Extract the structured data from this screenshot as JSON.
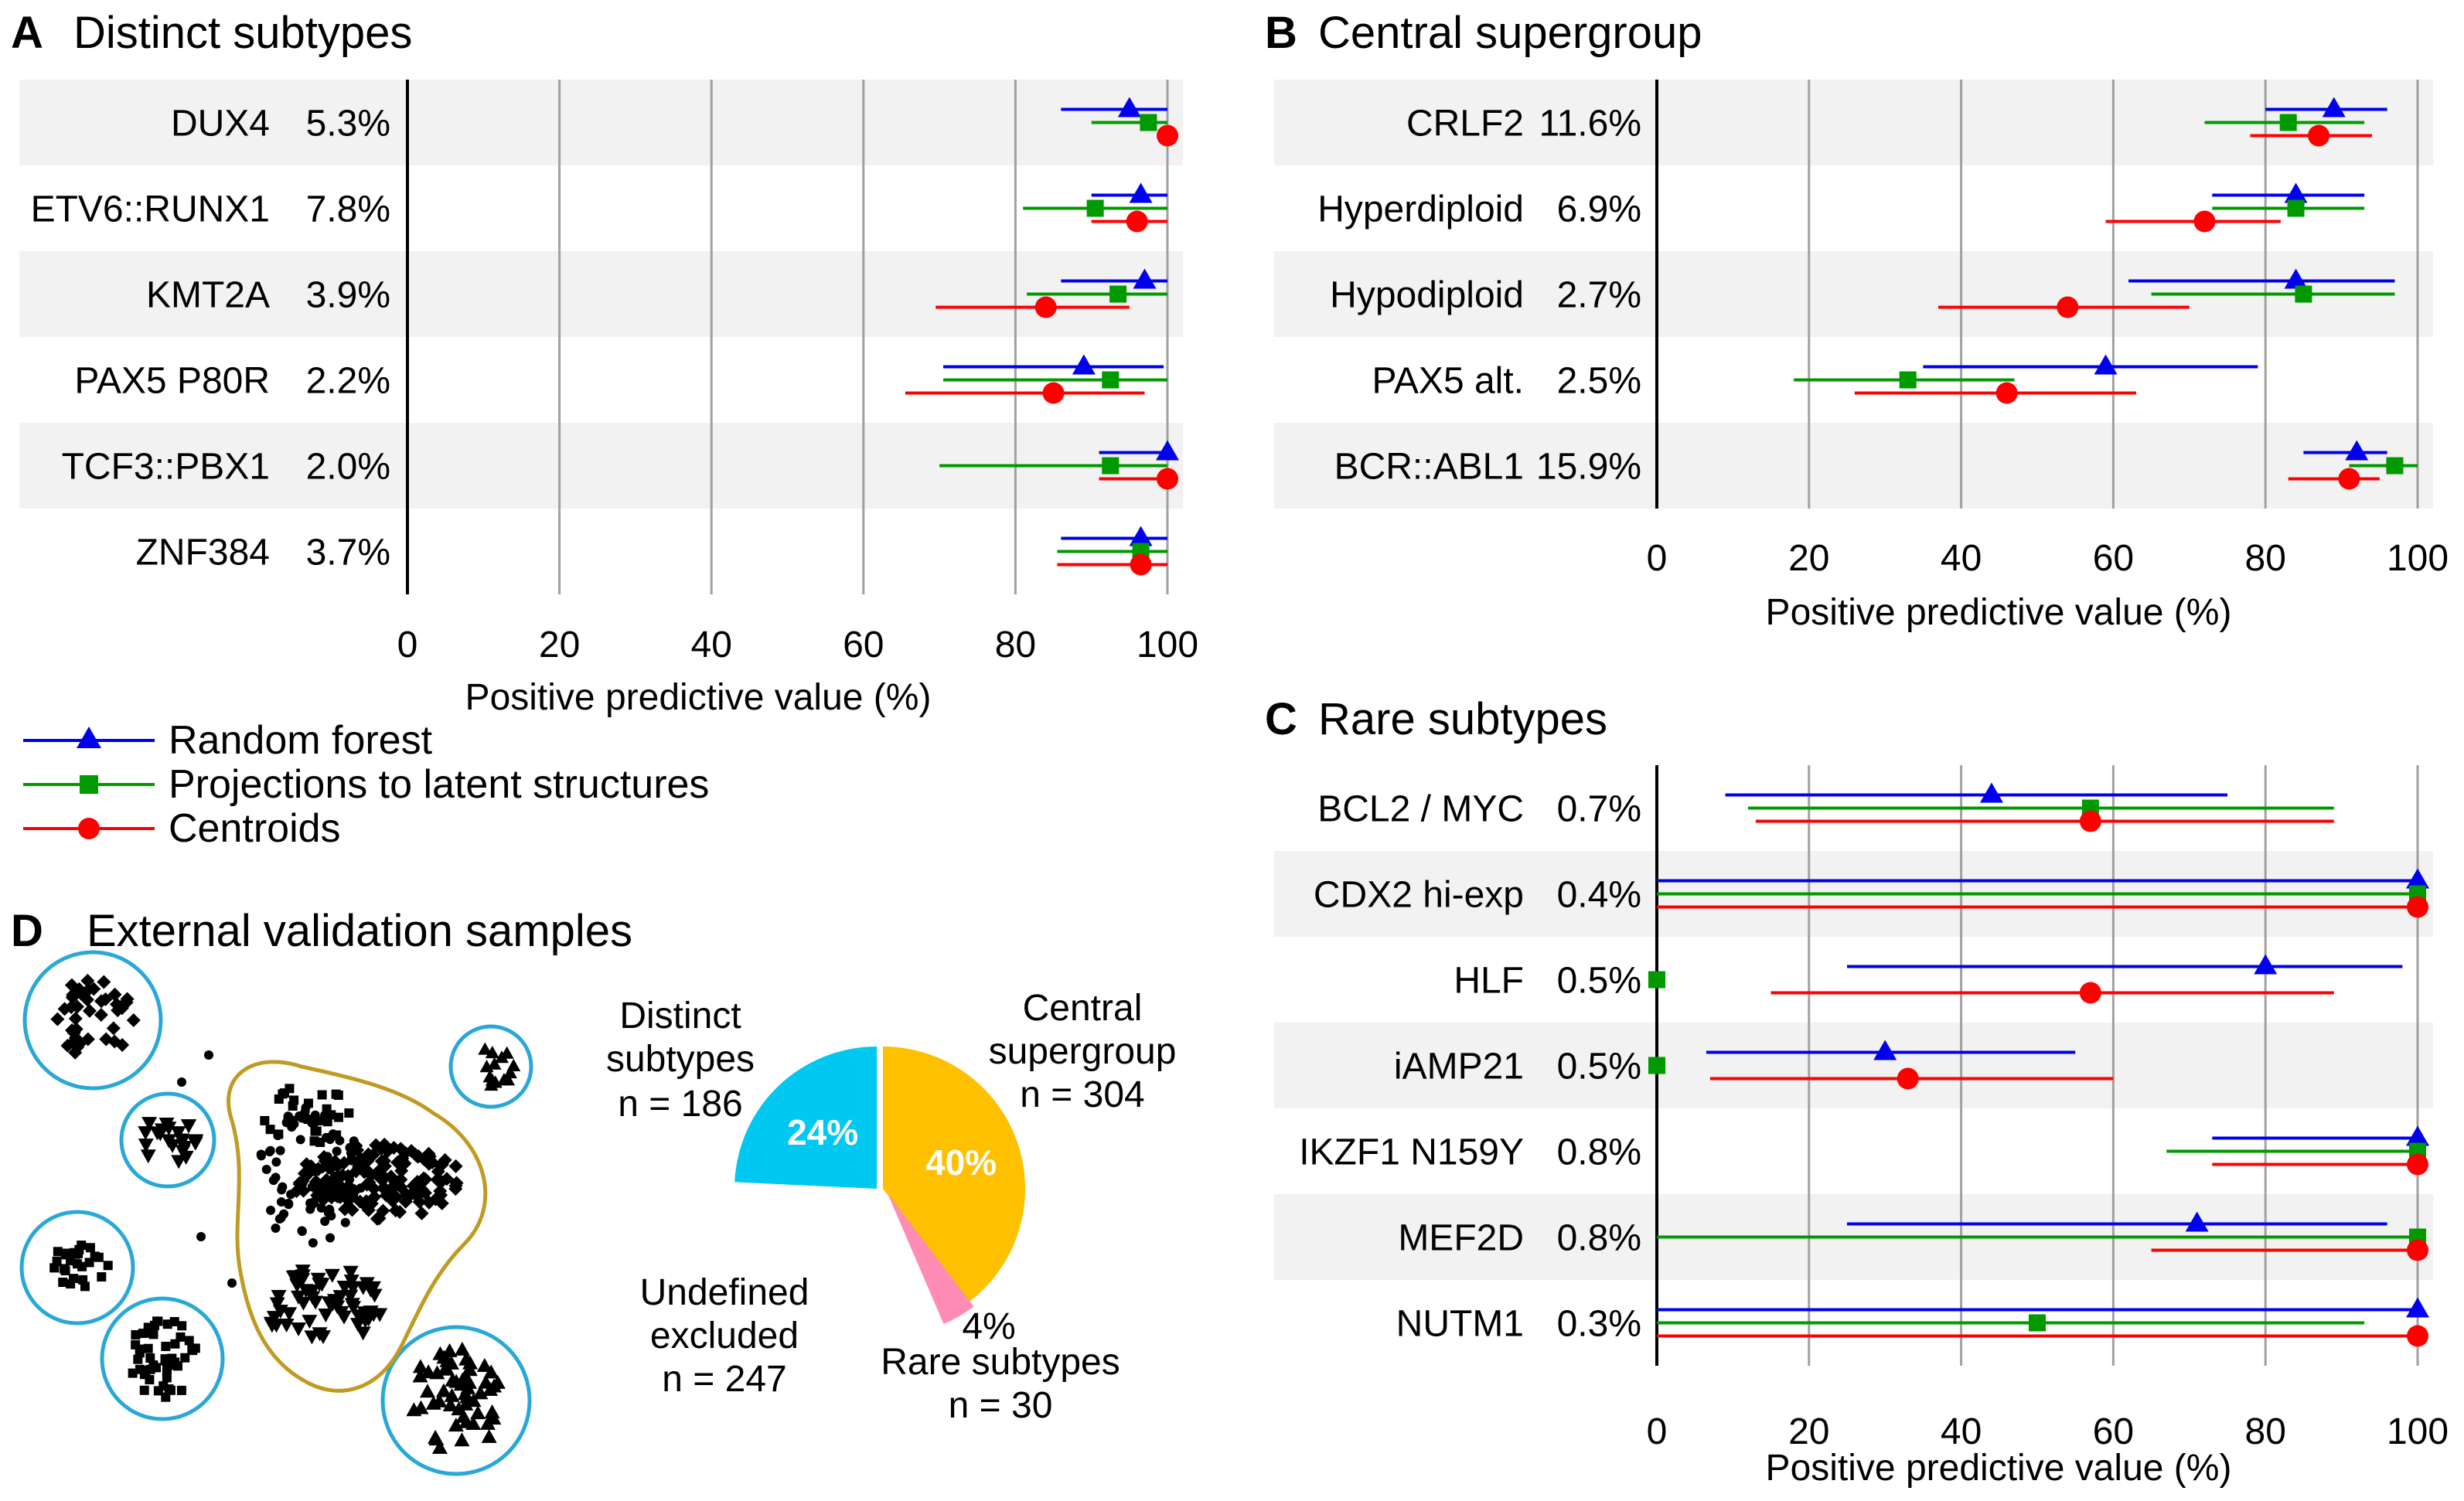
{
  "colors": {
    "random_forest": "#0000ee",
    "pls": "#009900",
    "centroids": "#ff0000",
    "band": "#f2f2f2",
    "grid": "#a0a0a0",
    "distinct": "#00c8f0",
    "central": "#ffc000",
    "rare": "#ff8cb4",
    "central_text": "#b8920a",
    "distinct_text": "#1aa0d8",
    "rare_text": "#ee3e8e",
    "undefined_text": "#999999",
    "outline_central": "#c09a22",
    "outline_distinct": "#29a8d8"
  },
  "legend": {
    "random_forest": "Random forest",
    "pls": "Projections to latent structures",
    "centroids": "Centroids"
  },
  "chart_data": [
    {
      "id": "A",
      "type": "scatter",
      "letter": "A",
      "title": "Distinct subtypes",
      "xlabel": "Positive predictive value (%)",
      "xlim": [
        0,
        100
      ],
      "xticks": [
        0,
        20,
        40,
        60,
        80,
        100
      ],
      "rows": [
        {
          "label": "DUX4",
          "pct": "5.3%",
          "rf": {
            "v": 95,
            "lo": 86,
            "hi": 100
          },
          "pls": {
            "v": 97.5,
            "lo": 90,
            "hi": 100
          },
          "cen": {
            "v": 100,
            "lo": 99,
            "hi": 100
          }
        },
        {
          "label": "ETV6::RUNX1",
          "pct": "7.8%",
          "rf": {
            "v": 96.5,
            "lo": 90,
            "hi": 100
          },
          "pls": {
            "v": 90.5,
            "lo": 81,
            "hi": 100
          },
          "cen": {
            "v": 96,
            "lo": 90,
            "hi": 100
          }
        },
        {
          "label": "KMT2A",
          "pct": "3.9%",
          "rf": {
            "v": 97,
            "lo": 86,
            "hi": 100
          },
          "pls": {
            "v": 93.5,
            "lo": 81.5,
            "hi": 100
          },
          "cen": {
            "v": 84,
            "lo": 69.5,
            "hi": 95
          }
        },
        {
          "label": "PAX5 P80R",
          "pct": "2.2%",
          "rf": {
            "v": 89,
            "lo": 70.5,
            "hi": 99.5
          },
          "pls": {
            "v": 92.5,
            "lo": 70.5,
            "hi": 100
          },
          "cen": {
            "v": 85,
            "lo": 65.5,
            "hi": 97
          }
        },
        {
          "label": "TCF3::PBX1",
          "pct": "2.0%",
          "rf": {
            "v": 100,
            "lo": 91,
            "hi": 100
          },
          "pls": {
            "v": 92.5,
            "lo": 70,
            "hi": 100
          },
          "cen": {
            "v": 100,
            "lo": 91,
            "hi": 100
          }
        },
        {
          "label": "ZNF384",
          "pct": "3.7%",
          "rf": {
            "v": 96.5,
            "lo": 86,
            "hi": 100
          },
          "pls": {
            "v": 96.5,
            "lo": 85.5,
            "hi": 100
          },
          "cen": {
            "v": 96.5,
            "lo": 85.5,
            "hi": 100
          }
        }
      ]
    },
    {
      "id": "B",
      "type": "scatter",
      "letter": "B",
      "title": "Central supergroup",
      "xlabel": "Positive predictive value (%)",
      "xlim": [
        0,
        100
      ],
      "xticks": [
        0,
        20,
        40,
        60,
        80,
        100
      ],
      "rows": [
        {
          "label": "CRLF2",
          "pct": "11.6%",
          "rf": {
            "v": 89,
            "lo": 80,
            "hi": 96
          },
          "pls": {
            "v": 83,
            "lo": 72,
            "hi": 93
          },
          "cen": {
            "v": 87,
            "lo": 78,
            "hi": 94
          }
        },
        {
          "label": "Hyperdiploid",
          "pct": "6.9%",
          "rf": {
            "v": 84,
            "lo": 73,
            "hi": 93
          },
          "pls": {
            "v": 84,
            "lo": 73,
            "hi": 93
          },
          "cen": {
            "v": 72,
            "lo": 59,
            "hi": 82
          }
        },
        {
          "label": "Hypodiploid",
          "pct": "2.7%",
          "rf": {
            "v": 84,
            "lo": 62,
            "hi": 97
          },
          "pls": {
            "v": 85,
            "lo": 65,
            "hi": 97
          },
          "cen": {
            "v": 54,
            "lo": 37,
            "hi": 70
          }
        },
        {
          "label": "PAX5 alt.",
          "pct": "2.5%",
          "rf": {
            "v": 59,
            "lo": 35,
            "hi": 79
          },
          "pls": {
            "v": 33,
            "lo": 18,
            "hi": 47
          },
          "cen": {
            "v": 46,
            "lo": 26,
            "hi": 63
          }
        },
        {
          "label": "BCR::ABL1",
          "pct": "15.9%",
          "rf": {
            "v": 92,
            "lo": 85,
            "hi": 96
          },
          "pls": {
            "v": 97,
            "lo": 91,
            "hi": 100
          },
          "cen": {
            "v": 91,
            "lo": 83,
            "hi": 95
          }
        }
      ]
    },
    {
      "id": "C",
      "type": "scatter",
      "letter": "C",
      "title": "Rare subtypes",
      "xlabel": "Positive predictive value (%)",
      "xlim": [
        0,
        100
      ],
      "xticks": [
        0,
        20,
        40,
        60,
        80,
        100
      ],
      "rows": [
        {
          "label": "BCL2 / MYC",
          "pct": "0.7%",
          "rf": {
            "v": 44,
            "lo": 9,
            "hi": 75
          },
          "pls": {
            "v": 57,
            "lo": 12,
            "hi": 89
          },
          "cen": {
            "v": 57,
            "lo": 13,
            "hi": 89
          }
        },
        {
          "label": "CDX2 hi-exp",
          "pct": "0.4%",
          "rf": {
            "v": 100,
            "lo": 0,
            "hi": 100
          },
          "pls": {
            "v": 100,
            "lo": 0,
            "hi": 100
          },
          "cen": {
            "v": 100,
            "lo": 0,
            "hi": 100
          }
        },
        {
          "label": "HLF",
          "pct": "0.5%",
          "rf": {
            "v": 80,
            "lo": 25,
            "hi": 98
          },
          "pls": {
            "v": 0,
            "lo": 0,
            "hi": 0
          },
          "cen": {
            "v": 57,
            "lo": 15,
            "hi": 89
          }
        },
        {
          "label": "iAMP21",
          "pct": "0.5%",
          "rf": {
            "v": 30,
            "lo": 6.5,
            "hi": 55
          },
          "pls": {
            "v": 0,
            "lo": 0,
            "hi": 0
          },
          "cen": {
            "v": 33,
            "lo": 7,
            "hi": 60
          }
        },
        {
          "label": "IKZF1 N159Y",
          "pct": "0.8%",
          "rf": {
            "v": 100,
            "lo": 73,
            "hi": 100
          },
          "pls": {
            "v": 100,
            "lo": 67,
            "hi": 100
          },
          "cen": {
            "v": 100,
            "lo": 73,
            "hi": 100
          }
        },
        {
          "label": "MEF2D",
          "pct": "0.8%",
          "rf": {
            "v": 71,
            "lo": 25,
            "hi": 96
          },
          "pls": {
            "v": 100,
            "lo": 0,
            "hi": 100
          },
          "cen": {
            "v": 100,
            "lo": 65,
            "hi": 100
          }
        },
        {
          "label": "NUTM1",
          "pct": "0.3%",
          "rf": {
            "v": 100,
            "lo": 0,
            "hi": 100
          },
          "pls": {
            "v": 50,
            "lo": 0,
            "hi": 93
          },
          "cen": {
            "v": 100,
            "lo": 0,
            "hi": 100
          }
        }
      ]
    },
    {
      "id": "D",
      "type": "pie",
      "letter": "D",
      "title": "External validation samples",
      "slices": [
        {
          "key": "distinct",
          "label_lines": [
            "Distinct",
            "subtypes"
          ],
          "n": "n = 186",
          "value": 186,
          "pct_label": "24%"
        },
        {
          "key": "central",
          "label_lines": [
            "Central",
            "supergroup"
          ],
          "n": "n = 304",
          "value": 304,
          "pct_label": "40%"
        },
        {
          "key": "rare",
          "label_lines": [
            "Rare subtypes"
          ],
          "n": "n = 30",
          "value": 30,
          "pct_label": "4%"
        },
        {
          "key": "undefined",
          "label_lines": [
            "Undefined",
            "excluded"
          ],
          "n": "n = 247",
          "value": 247,
          "pct_label": ""
        }
      ]
    }
  ]
}
